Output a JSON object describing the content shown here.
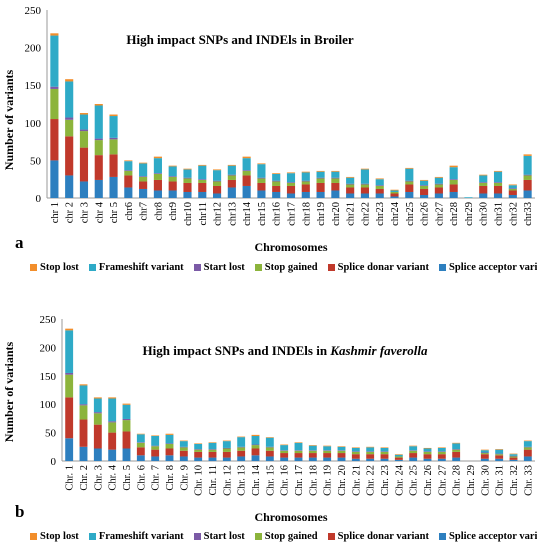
{
  "colors": {
    "splice_acceptor": "#2d7fbf",
    "splice_donar": "#c0392b",
    "stop_gained": "#8cb43c",
    "start_lost": "#7b5aa6",
    "frameshift": "#2eaac7",
    "stop_lost": "#f28e2b"
  },
  "panel_labels": [
    "a",
    "b"
  ],
  "legend_labels": [
    "Stop lost",
    "Frameshift variant",
    "Start lost",
    "Stop gained",
    "Splice donar variant",
    "Splice acceptor variant"
  ],
  "chart_data": [
    {
      "type": "bar",
      "stacked": true,
      "title": "High impact SNPs and INDEls in Broiler",
      "xlabel": "Chromosomes",
      "ylabel": "Number of variants",
      "ylim": [
        0,
        250
      ],
      "yticks": [
        0,
        50,
        100,
        150,
        200,
        250
      ],
      "categories": [
        "chr 1",
        "chr 2",
        "chr 3",
        "chr 4",
        "chr 5",
        "chr6",
        "chr7",
        "chr8",
        "chr9",
        "chr10",
        "chr11",
        "chr12",
        "chr13",
        "chr14",
        "chr15",
        "chr16",
        "chr17",
        "chr18",
        "chr19",
        "chr20",
        "chr21",
        "chr22",
        "chr23",
        "chr24",
        "chr25",
        "chr26",
        "chr27",
        "chr28",
        "chr29",
        "chr30",
        "chr31",
        "chr32",
        "chr33"
      ],
      "series": [
        {
          "name": "Splice acceptor variant",
          "values": [
            50,
            30,
            22,
            24,
            28,
            14,
            12,
            10,
            10,
            8,
            8,
            6,
            14,
            16,
            10,
            8,
            6,
            8,
            8,
            10,
            6,
            6,
            6,
            2,
            8,
            4,
            6,
            8,
            0,
            6,
            6,
            4,
            10
          ]
        },
        {
          "name": "Splice donar variant",
          "values": [
            55,
            52,
            45,
            33,
            30,
            16,
            10,
            14,
            12,
            12,
            12,
            10,
            10,
            14,
            10,
            8,
            10,
            10,
            12,
            10,
            8,
            8,
            6,
            4,
            10,
            8,
            8,
            10,
            0,
            10,
            10,
            6,
            14
          ]
        },
        {
          "name": "Stop gained",
          "values": [
            40,
            22,
            22,
            20,
            20,
            6,
            6,
            8,
            6,
            6,
            4,
            6,
            6,
            6,
            6,
            6,
            4,
            4,
            6,
            6,
            4,
            4,
            4,
            2,
            4,
            4,
            4,
            6,
            0,
            4,
            4,
            2,
            6
          ]
        },
        {
          "name": "Start lost",
          "values": [
            3,
            3,
            2,
            2,
            2,
            1,
            1,
            1,
            1,
            1,
            1,
            1,
            1,
            1,
            1,
            1,
            1,
            1,
            1,
            1,
            1,
            1,
            1,
            0,
            1,
            1,
            1,
            1,
            0,
            1,
            1,
            1,
            1
          ]
        },
        {
          "name": "Frameshift variant",
          "values": [
            68,
            48,
            20,
            44,
            29,
            12,
            17,
            20,
            13,
            11,
            18,
            14,
            12,
            16,
            18,
            9,
            12,
            11,
            8,
            8,
            8,
            19,
            8,
            2,
            16,
            6,
            8,
            16,
            1,
            9,
            14,
            4,
            25
          ]
        },
        {
          "name": "Stop lost",
          "values": [
            3,
            3,
            2,
            2,
            2,
            1,
            1,
            2,
            1,
            1,
            1,
            1,
            1,
            2,
            1,
            1,
            1,
            1,
            1,
            1,
            1,
            1,
            1,
            1,
            1,
            1,
            1,
            2,
            0,
            1,
            1,
            1,
            2
          ]
        }
      ]
    },
    {
      "type": "bar",
      "stacked": true,
      "title_plain": "High impact SNPs and INDEls in ",
      "title_italic": "Kashmir faverolla",
      "xlabel": "Chromosomes",
      "ylabel": "Number of variants",
      "ylim": [
        0,
        250
      ],
      "yticks": [
        0,
        50,
        100,
        150,
        200,
        250
      ],
      "categories": [
        "Chr. 1",
        "Chr. 2",
        "Chr. 3",
        "Chr. 4",
        "Chr. 5",
        "Chr. 6",
        "Chr. 7",
        "Chr. 8",
        "Chr. 9",
        "Chr. 10",
        "Chr. 11",
        "Chr. 12",
        "Chr. 13",
        "Chr. 14",
        "Chr. 15",
        "Chr. 16",
        "Chr. 17",
        "Chr. 18",
        "Chr. 19",
        "Chr. 20",
        "Chr. 21",
        "Chr. 22",
        "Chr. 23",
        "Chr. 24",
        "Chr. 25",
        "Chr. 26",
        "Chr. 27",
        "Chr. 28",
        "Chr. 29",
        "Chr. 30",
        "Chr. 31",
        "Chr. 32",
        "Chr. 33"
      ],
      "series": [
        {
          "name": "Splice acceptor variant",
          "values": [
            40,
            25,
            22,
            20,
            22,
            10,
            8,
            10,
            8,
            6,
            6,
            6,
            8,
            10,
            8,
            6,
            6,
            6,
            6,
            6,
            4,
            4,
            4,
            2,
            6,
            4,
            4,
            6,
            0,
            4,
            4,
            2,
            8
          ]
        },
        {
          "name": "Splice donar variant",
          "values": [
            72,
            48,
            42,
            30,
            30,
            14,
            12,
            12,
            10,
            10,
            10,
            10,
            10,
            12,
            10,
            8,
            8,
            8,
            8,
            8,
            8,
            8,
            8,
            4,
            8,
            8,
            8,
            10,
            0,
            8,
            6,
            4,
            12
          ]
        },
        {
          "name": "Stop gained",
          "values": [
            40,
            25,
            20,
            18,
            20,
            8,
            6,
            8,
            6,
            4,
            4,
            6,
            6,
            6,
            6,
            4,
            4,
            4,
            4,
            4,
            4,
            4,
            4,
            2,
            4,
            4,
            4,
            4,
            0,
            2,
            2,
            2,
            4
          ]
        },
        {
          "name": "Start lost",
          "values": [
            3,
            2,
            2,
            2,
            2,
            1,
            1,
            1,
            1,
            1,
            1,
            1,
            1,
            1,
            1,
            1,
            1,
            1,
            1,
            1,
            1,
            1,
            1,
            0,
            1,
            1,
            1,
            1,
            0,
            1,
            1,
            1,
            1
          ]
        },
        {
          "name": "Frameshift variant",
          "values": [
            75,
            33,
            24,
            40,
            25,
            14,
            17,
            15,
            10,
            9,
            11,
            12,
            17,
            15,
            16,
            9,
            13,
            8,
            7,
            6,
            6,
            7,
            6,
            3,
            7,
            5,
            6,
            10,
            0,
            4,
            7,
            3,
            10
          ]
        },
        {
          "name": "Stop lost",
          "values": [
            3,
            2,
            2,
            2,
            2,
            1,
            1,
            2,
            1,
            1,
            1,
            1,
            1,
            2,
            1,
            1,
            1,
            1,
            1,
            1,
            1,
            1,
            1,
            1,
            1,
            1,
            1,
            1,
            0,
            1,
            1,
            1,
            1
          ]
        }
      ]
    }
  ]
}
